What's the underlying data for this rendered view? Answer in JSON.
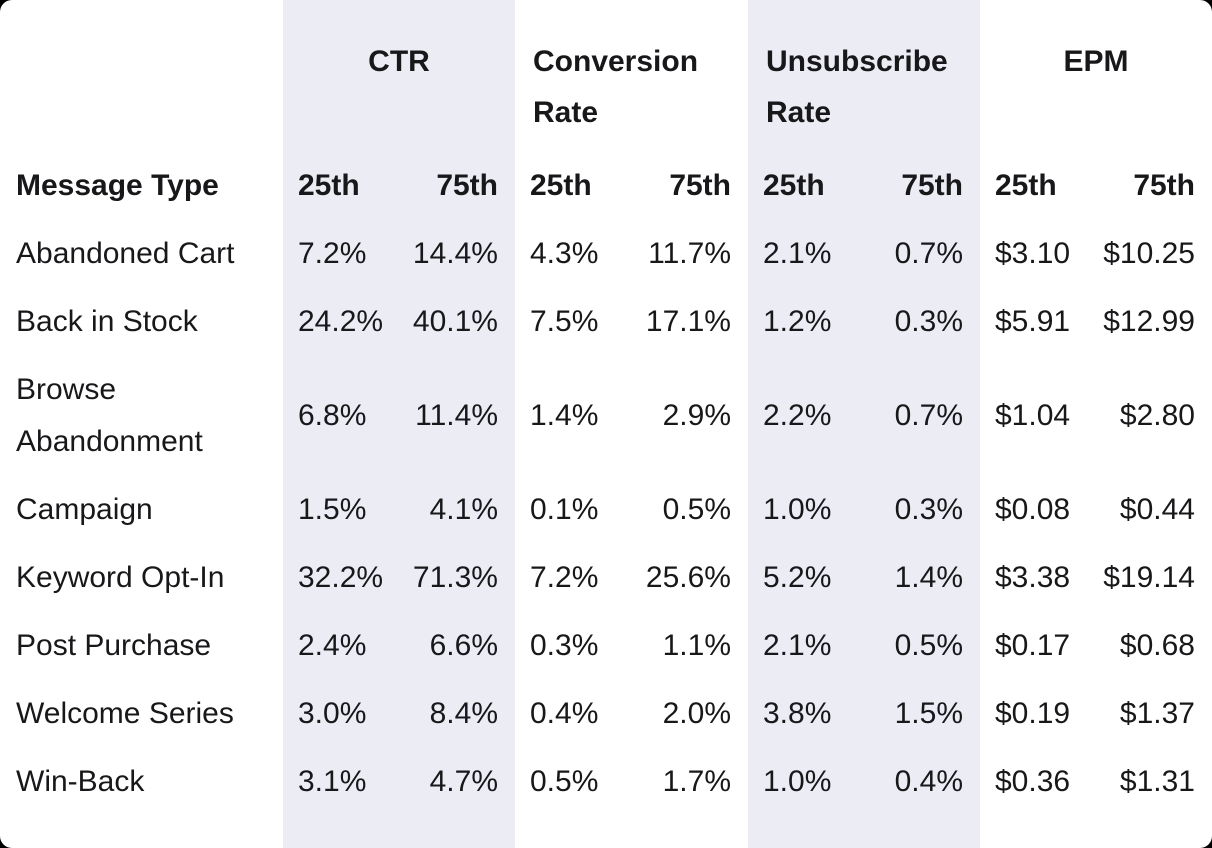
{
  "colors": {
    "page_background": "#000000",
    "card_background": "#FFFFFF",
    "band_shading": "#ECEDF4",
    "text": "#18181B"
  },
  "chart_data": {
    "type": "table",
    "row_header": "Message Type",
    "column_groups": [
      {
        "label": "CTR",
        "shaded": true
      },
      {
        "label": "Conversion Rate",
        "shaded": false
      },
      {
        "label": "Unsubscribe Rate",
        "shaded": true
      },
      {
        "label": "EPM",
        "shaded": false
      }
    ],
    "percentile_headers": [
      "25th",
      "75th"
    ],
    "rows": [
      {
        "label": "Abandoned Cart",
        "values": [
          "7.2%",
          "14.4%",
          "4.3%",
          "11.7%",
          "2.1%",
          "0.7%",
          "$3.10",
          "$10.25"
        ]
      },
      {
        "label": "Back in Stock",
        "values": [
          "24.2%",
          "40.1%",
          "7.5%",
          "17.1%",
          "1.2%",
          "0.3%",
          "$5.91",
          "$12.99"
        ]
      },
      {
        "label": "Browse Abandonment",
        "values": [
          "6.8%",
          "11.4%",
          "1.4%",
          "2.9%",
          "2.2%",
          "0.7%",
          "$1.04",
          "$2.80"
        ]
      },
      {
        "label": "Campaign",
        "values": [
          "1.5%",
          "4.1%",
          "0.1%",
          "0.5%",
          "1.0%",
          "0.3%",
          "$0.08",
          "$0.44"
        ]
      },
      {
        "label": "Keyword Opt-In",
        "values": [
          "32.2%",
          "71.3%",
          "7.2%",
          "25.6%",
          "5.2%",
          "1.4%",
          "$3.38",
          "$19.14"
        ]
      },
      {
        "label": "Post Purchase",
        "values": [
          "2.4%",
          "6.6%",
          "0.3%",
          "1.1%",
          "2.1%",
          "0.5%",
          "$0.17",
          "$0.68"
        ]
      },
      {
        "label": "Welcome Series",
        "values": [
          "3.0%",
          "8.4%",
          "0.4%",
          "2.0%",
          "3.8%",
          "1.5%",
          "$0.19",
          "$1.37"
        ]
      },
      {
        "label": "Win-Back",
        "values": [
          "3.1%",
          "4.7%",
          "0.5%",
          "1.7%",
          "1.0%",
          "0.4%",
          "$0.36",
          "$1.31"
        ]
      }
    ]
  }
}
